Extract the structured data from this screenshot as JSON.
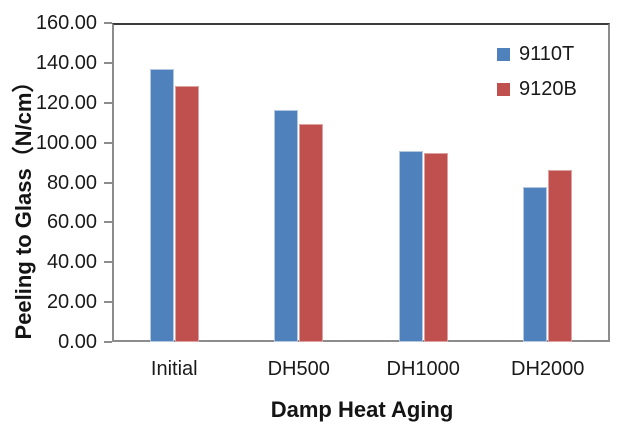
{
  "chart_data": {
    "type": "bar",
    "title": "",
    "xlabel": "Damp Heat Aging",
    "ylabel": "Peeling to Glass（N/cm）",
    "categories": [
      "Initial",
      "DH500",
      "DH1000",
      "DH2000"
    ],
    "series": [
      {
        "name": "9110T",
        "color": "#4f81bd",
        "edge_color": "#b3c7e1",
        "values": [
          136.9,
          116.4,
          95.8,
          77.5
        ]
      },
      {
        "name": "9120B",
        "color": "#c0504d",
        "edge_color": "#ddA2a0",
        "values": [
          128.4,
          109.2,
          94.8,
          86.3
        ]
      }
    ],
    "ylim": [
      0,
      160
    ],
    "ytick_step": 20,
    "ytick_labels": [
      "160.00",
      "140.00",
      "120.00",
      "100.00",
      "80.00",
      "60.00",
      "40.00",
      "20.00",
      "0.00"
    ],
    "grid": false,
    "legend_position": "top-right-inside",
    "axis_color": "#8c8c8c",
    "text_color": "#1a1a1a"
  }
}
